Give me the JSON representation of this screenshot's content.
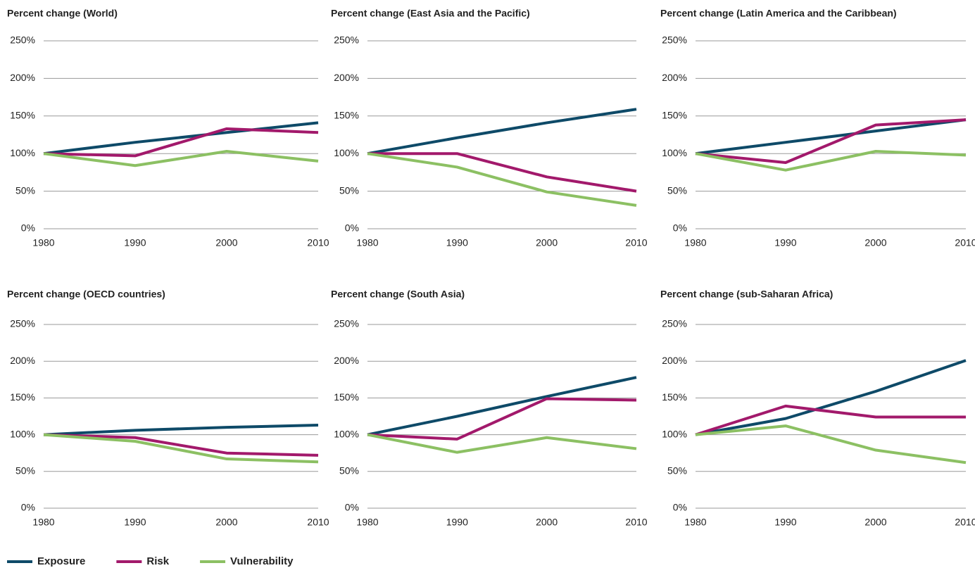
{
  "chart_data": [
    {
      "type": "line",
      "title": "Percent change (World)",
      "x": [
        1980,
        1990,
        2000,
        2010
      ],
      "xlim": [
        1980,
        2010
      ],
      "xticks": [
        1980,
        1990,
        2000,
        2010
      ],
      "ylim": [
        0,
        250
      ],
      "yticks": [
        {
          "value": 0,
          "label": "0%"
        },
        {
          "value": 50,
          "label": "50%"
        },
        {
          "value": 100,
          "label": "100%"
        },
        {
          "value": 150,
          "label": "150%"
        },
        {
          "value": 200,
          "label": "200%"
        },
        {
          "value": 250,
          "label": "250%"
        }
      ],
      "grid": true,
      "series": [
        {
          "name": "Exposure",
          "color": "#0e4a68",
          "values": [
            100,
            115,
            128,
            141
          ]
        },
        {
          "name": "Risk",
          "color": "#a2196b",
          "values": [
            100,
            97,
            133,
            128
          ]
        },
        {
          "name": "Vulnerability",
          "color": "#8cc063",
          "values": [
            100,
            84,
            103,
            90
          ]
        }
      ]
    },
    {
      "type": "line",
      "title": "Percent change (East Asia and the Pacific)",
      "x": [
        1980,
        1990,
        2000,
        2010
      ],
      "xlim": [
        1980,
        2010
      ],
      "xticks": [
        1980,
        1990,
        2000,
        2010
      ],
      "ylim": [
        0,
        250
      ],
      "yticks": [
        {
          "value": 0,
          "label": "0%"
        },
        {
          "value": 50,
          "label": "50%"
        },
        {
          "value": 100,
          "label": "100%"
        },
        {
          "value": 150,
          "label": "150%"
        },
        {
          "value": 200,
          "label": "200%"
        },
        {
          "value": 250,
          "label": "250%"
        }
      ],
      "grid": true,
      "series": [
        {
          "name": "Exposure",
          "color": "#0e4a68",
          "values": [
            100,
            121,
            141,
            159
          ]
        },
        {
          "name": "Risk",
          "color": "#a2196b",
          "values": [
            100,
            100,
            69,
            50
          ]
        },
        {
          "name": "Vulnerability",
          "color": "#8cc063",
          "values": [
            100,
            82,
            49,
            31
          ]
        }
      ]
    },
    {
      "type": "line",
      "title": "Percent change (Latin America and the Caribbean)",
      "x": [
        1980,
        1990,
        2000,
        2010
      ],
      "xlim": [
        1980,
        2010
      ],
      "xticks": [
        1980,
        1990,
        2000,
        2010
      ],
      "ylim": [
        0,
        250
      ],
      "yticks": [
        {
          "value": 0,
          "label": "0%"
        },
        {
          "value": 50,
          "label": "50%"
        },
        {
          "value": 100,
          "label": "100%"
        },
        {
          "value": 150,
          "label": "150%"
        },
        {
          "value": 200,
          "label": "200%"
        },
        {
          "value": 250,
          "label": "250%"
        }
      ],
      "grid": true,
      "series": [
        {
          "name": "Exposure",
          "color": "#0e4a68",
          "values": [
            100,
            115,
            130,
            145
          ]
        },
        {
          "name": "Risk",
          "color": "#a2196b",
          "values": [
            100,
            88,
            138,
            145
          ]
        },
        {
          "name": "Vulnerability",
          "color": "#8cc063",
          "values": [
            100,
            78,
            103,
            98
          ]
        }
      ]
    },
    {
      "type": "line",
      "title": "Percent change (OECD countries)",
      "x": [
        1980,
        1990,
        2000,
        2010
      ],
      "xlim": [
        1980,
        2010
      ],
      "xticks": [
        1980,
        1990,
        2000,
        2010
      ],
      "ylim": [
        0,
        250
      ],
      "yticks": [
        {
          "value": 0,
          "label": "0%"
        },
        {
          "value": 50,
          "label": "50%"
        },
        {
          "value": 100,
          "label": "100%"
        },
        {
          "value": 150,
          "label": "150%"
        },
        {
          "value": 200,
          "label": "200%"
        },
        {
          "value": 250,
          "label": "250%"
        }
      ],
      "grid": true,
      "series": [
        {
          "name": "Exposure",
          "color": "#0e4a68",
          "values": [
            100,
            106,
            110,
            113
          ]
        },
        {
          "name": "Risk",
          "color": "#a2196b",
          "values": [
            100,
            96,
            75,
            72
          ]
        },
        {
          "name": "Vulnerability",
          "color": "#8cc063",
          "values": [
            100,
            91,
            67,
            63
          ]
        }
      ]
    },
    {
      "type": "line",
      "title": "Percent change (South Asia)",
      "x": [
        1980,
        1990,
        2000,
        2010
      ],
      "xlim": [
        1980,
        2010
      ],
      "xticks": [
        1980,
        1990,
        2000,
        2010
      ],
      "ylim": [
        0,
        250
      ],
      "yticks": [
        {
          "value": 0,
          "label": "0%"
        },
        {
          "value": 50,
          "label": "50%"
        },
        {
          "value": 100,
          "label": "100%"
        },
        {
          "value": 150,
          "label": "150%"
        },
        {
          "value": 200,
          "label": "200%"
        },
        {
          "value": 250,
          "label": "250%"
        }
      ],
      "grid": true,
      "series": [
        {
          "name": "Exposure",
          "color": "#0e4a68",
          "values": [
            100,
            125,
            152,
            178
          ]
        },
        {
          "name": "Risk",
          "color": "#a2196b",
          "values": [
            100,
            94,
            149,
            147
          ]
        },
        {
          "name": "Vulnerability",
          "color": "#8cc063",
          "values": [
            100,
            76,
            96,
            81
          ]
        }
      ]
    },
    {
      "type": "line",
      "title": "Percent change (sub-Saharan Africa)",
      "x": [
        1980,
        1990,
        2000,
        2010
      ],
      "xlim": [
        1980,
        2010
      ],
      "xticks": [
        1980,
        1990,
        2000,
        2010
      ],
      "ylim": [
        0,
        250
      ],
      "yticks": [
        {
          "value": 0,
          "label": "0%"
        },
        {
          "value": 50,
          "label": "50%"
        },
        {
          "value": 100,
          "label": "100%"
        },
        {
          "value": 150,
          "label": "150%"
        },
        {
          "value": 200,
          "label": "200%"
        },
        {
          "value": 250,
          "label": "250%"
        }
      ],
      "grid": true,
      "series": [
        {
          "name": "Exposure",
          "color": "#0e4a68",
          "values": [
            100,
            122,
            159,
            201
          ]
        },
        {
          "name": "Risk",
          "color": "#a2196b",
          "values": [
            100,
            139,
            124,
            124
          ]
        },
        {
          "name": "Vulnerability",
          "color": "#8cc063",
          "values": [
            100,
            112,
            79,
            62
          ]
        }
      ]
    }
  ]
}
